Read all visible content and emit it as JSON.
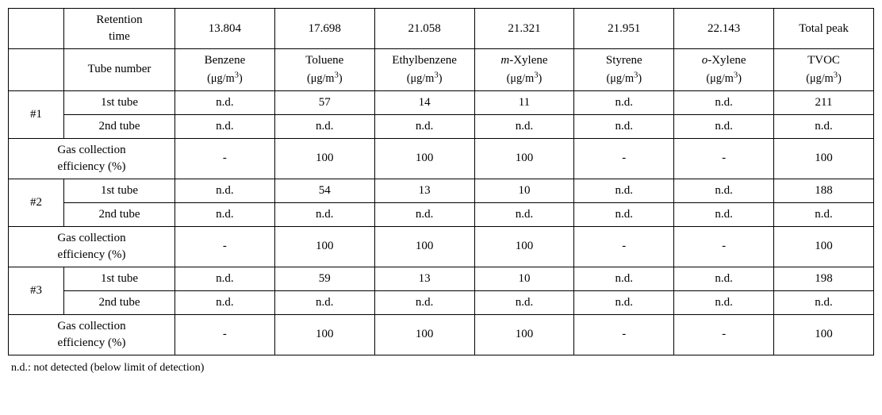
{
  "header": {
    "row1": {
      "retention_label": "Retention time",
      "values": [
        "13.804",
        "17.698",
        "21.058",
        "21.321",
        "21.951",
        "22.143"
      ],
      "total_label": "Total peak"
    },
    "row2": {
      "tube_label": "Tube number",
      "compounds": [
        "Benzene",
        "Toluene",
        "Ethylbenzene",
        "m-Xylene",
        "Styrene",
        "o-Xylene",
        "TVOC"
      ],
      "compounds_italic_prefix": [
        "",
        "",
        "",
        "m",
        "",
        "o",
        ""
      ],
      "compounds_suffix": [
        "",
        "",
        "",
        "-Xylene",
        "",
        "-Xylene",
        ""
      ],
      "unit_prefix": "(",
      "unit_mu": "μ",
      "unit_text": "g/m",
      "unit_sup": "3",
      "unit_suffix": ")"
    }
  },
  "groups": [
    {
      "id": "#1",
      "rows": [
        {
          "label": "1st tube",
          "cells": [
            "n.d.",
            "57",
            "14",
            "11",
            "n.d.",
            "n.d.",
            "211"
          ]
        },
        {
          "label": "2nd tube",
          "cells": [
            "n.d.",
            "n.d.",
            "n.d.",
            "n.d.",
            "n.d.",
            "n.d.",
            "n.d."
          ]
        }
      ],
      "efficiency": {
        "label": "Gas collection efficiency (%)",
        "cells": [
          "-",
          "100",
          "100",
          "100",
          "-",
          "-",
          "100"
        ]
      }
    },
    {
      "id": "#2",
      "rows": [
        {
          "label": "1st tube",
          "cells": [
            "n.d.",
            "54",
            "13",
            "10",
            "n.d.",
            "n.d.",
            "188"
          ]
        },
        {
          "label": "2nd tube",
          "cells": [
            "n.d.",
            "n.d.",
            "n.d.",
            "n.d.",
            "n.d.",
            "n.d.",
            "n.d."
          ]
        }
      ],
      "efficiency": {
        "label": "Gas collection efficiency (%)",
        "cells": [
          "-",
          "100",
          "100",
          "100",
          "-",
          "-",
          "100"
        ]
      }
    },
    {
      "id": "#3",
      "rows": [
        {
          "label": "1st tube",
          "cells": [
            "n.d.",
            "59",
            "13",
            "10",
            "n.d.",
            "n.d.",
            "198"
          ]
        },
        {
          "label": "2nd tube",
          "cells": [
            "n.d.",
            "n.d.",
            "n.d.",
            "n.d.",
            "n.d.",
            "n.d.",
            "n.d."
          ]
        }
      ],
      "efficiency": {
        "label": "Gas collection efficiency (%)",
        "cells": [
          "-",
          "100",
          "100",
          "100",
          "-",
          "-",
          "100"
        ]
      }
    }
  ],
  "footnote": "n.d.: not detected (below limit of detection)",
  "style": {
    "font_size": 15,
    "border_color": "#000000",
    "background": "#ffffff",
    "text_color": "#000000"
  }
}
